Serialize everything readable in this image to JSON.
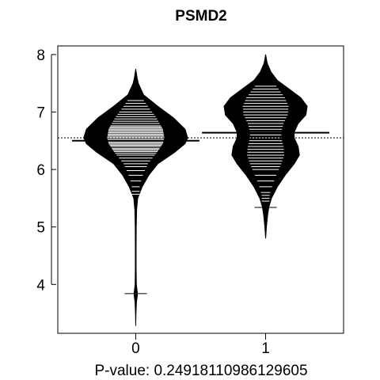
{
  "chart_data": {
    "type": "beanplot",
    "title": "PSMD2",
    "xlabel": "P-value: 0.24918110986129605",
    "ylabel": "",
    "categories": [
      "0",
      "1"
    ],
    "ylim": [
      3.15,
      8.15
    ],
    "yticks": [
      "4",
      "5",
      "6",
      "7",
      "8"
    ],
    "xlim": [
      -0.6,
      1.6
    ],
    "overall_mean": 6.55,
    "series": [
      {
        "category": "0",
        "mean": 6.5,
        "density": [
          [
            3.28,
            0.0
          ],
          [
            3.5,
            0.002
          ],
          [
            3.7,
            0.006
          ],
          [
            3.8,
            0.012
          ],
          [
            3.85,
            0.013
          ],
          [
            3.9,
            0.01
          ],
          [
            4.0,
            0.005
          ],
          [
            4.15,
            0.004
          ],
          [
            4.3,
            0.003
          ],
          [
            4.6,
            0.003
          ],
          [
            5.0,
            0.004
          ],
          [
            5.3,
            0.007
          ],
          [
            5.5,
            0.015
          ],
          [
            5.7,
            0.05
          ],
          [
            5.9,
            0.1
          ],
          [
            6.1,
            0.17
          ],
          [
            6.3,
            0.3
          ],
          [
            6.45,
            0.38
          ],
          [
            6.55,
            0.4
          ],
          [
            6.7,
            0.38
          ],
          [
            6.9,
            0.29
          ],
          [
            7.1,
            0.17
          ],
          [
            7.3,
            0.06
          ],
          [
            7.5,
            0.02
          ],
          [
            7.6,
            0.01
          ],
          [
            7.75,
            0.0
          ]
        ],
        "obs": [
          3.84,
          5.57,
          5.62,
          5.7,
          5.8,
          5.9,
          5.98,
          6.05,
          6.1,
          6.15,
          6.2,
          6.25,
          6.28,
          6.31,
          6.33,
          6.35,
          6.37,
          6.4,
          6.42,
          6.44,
          6.46,
          6.48,
          6.5,
          6.52,
          6.54,
          6.56,
          6.58,
          6.6,
          6.62,
          6.64,
          6.66,
          6.68,
          6.7,
          6.72,
          6.74,
          6.76,
          6.8,
          6.84,
          6.88,
          6.92,
          6.96,
          7.0,
          7.05,
          7.1,
          7.15,
          7.2
        ]
      },
      {
        "category": "1",
        "mean": 6.64,
        "density": [
          [
            4.8,
            0.0
          ],
          [
            5.0,
            0.006
          ],
          [
            5.2,
            0.015
          ],
          [
            5.35,
            0.025
          ],
          [
            5.5,
            0.045
          ],
          [
            5.7,
            0.09
          ],
          [
            5.9,
            0.15
          ],
          [
            6.1,
            0.22
          ],
          [
            6.25,
            0.26
          ],
          [
            6.4,
            0.25
          ],
          [
            6.55,
            0.22
          ],
          [
            6.65,
            0.22
          ],
          [
            6.8,
            0.25
          ],
          [
            6.95,
            0.31
          ],
          [
            7.1,
            0.32
          ],
          [
            7.25,
            0.27
          ],
          [
            7.4,
            0.18
          ],
          [
            7.55,
            0.09
          ],
          [
            7.7,
            0.04
          ],
          [
            7.85,
            0.012
          ],
          [
            8.0,
            0.0
          ]
        ],
        "obs": [
          5.34,
          5.45,
          5.5,
          5.55,
          5.6,
          5.7,
          5.8,
          5.9,
          6.0,
          6.05,
          6.1,
          6.15,
          6.2,
          6.25,
          6.3,
          6.35,
          6.4,
          6.45,
          6.5,
          6.55,
          6.6,
          6.65,
          6.7,
          6.75,
          6.8,
          6.85,
          6.9,
          6.95,
          7.0,
          7.05,
          7.1,
          7.15,
          7.2,
          7.25,
          7.3,
          7.35,
          7.4,
          7.45
        ]
      }
    ],
    "colors": {
      "bean": "#000000",
      "obs": "#ffffff",
      "axis": "#000000"
    }
  }
}
